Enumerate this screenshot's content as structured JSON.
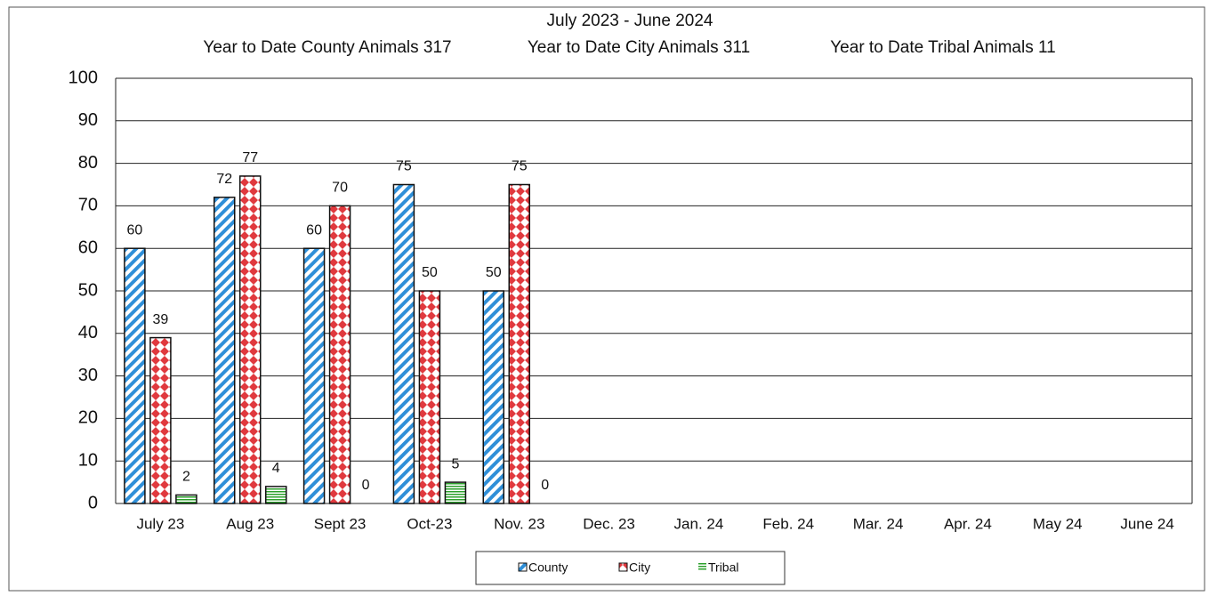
{
  "chart_data": {
    "type": "bar",
    "title": "July 2023 - June 2024",
    "subtitle": [
      "Year to Date County Animals 317",
      "Year to Date City Animals 311",
      "Year to Date Tribal Animals  11"
    ],
    "categories": [
      "July 23",
      "Aug 23",
      "Sept 23",
      "Oct-23",
      "Nov. 23",
      "Dec. 23",
      "Jan. 24",
      "Feb. 24",
      "Mar. 24",
      "Apr. 24",
      "May 24",
      "June 24"
    ],
    "series": [
      {
        "name": "County",
        "color": "#2f8fd8",
        "values": [
          60,
          72,
          60,
          75,
          50,
          null,
          null,
          null,
          null,
          null,
          null,
          null
        ]
      },
      {
        "name": "City",
        "color": "#e0393e",
        "values": [
          39,
          77,
          70,
          50,
          75,
          null,
          null,
          null,
          null,
          null,
          null,
          null
        ]
      },
      {
        "name": "Tribal",
        "color": "#2ca02c",
        "values": [
          2,
          4,
          0,
          5,
          0,
          null,
          null,
          null,
          null,
          null,
          null,
          null
        ]
      }
    ],
    "ylim": [
      0,
      100
    ],
    "yticks": [
      0,
      10,
      20,
      30,
      40,
      50,
      60,
      70,
      80,
      90,
      100
    ],
    "grid": true,
    "legend": "bottom"
  }
}
